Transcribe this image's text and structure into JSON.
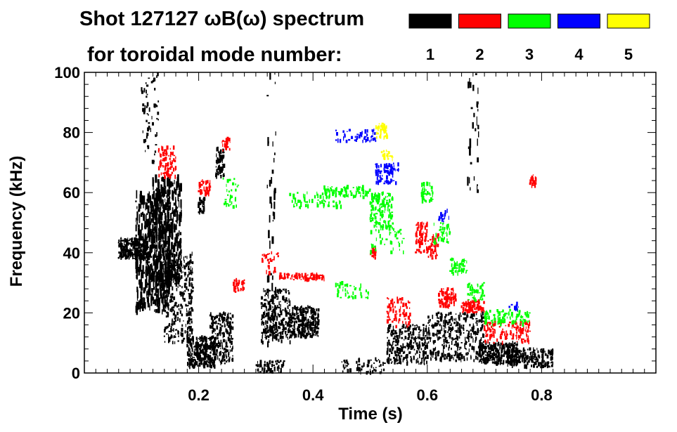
{
  "chart_data": {
    "type": "scatter",
    "title_line1": "Shot 127127 ωB(ω) spectrum",
    "title_line2": "for toroidal mode number:",
    "xlabel": "Time (s)",
    "ylabel": "Frequency (kHz)",
    "xlim": [
      0.0,
      1.0
    ],
    "ylim": [
      0,
      100
    ],
    "xticks": [
      0.2,
      0.4,
      0.6,
      0.8
    ],
    "xtick_labels": [
      "0.2",
      "0.4",
      "0.6",
      "0.8"
    ],
    "yticks": [
      0,
      20,
      40,
      60,
      80,
      100
    ],
    "ytick_labels": [
      "0",
      "20",
      "40",
      "60",
      "80",
      "100"
    ],
    "legend": [
      {
        "label": "1",
        "color": "#000000"
      },
      {
        "label": "2",
        "color": "#ff0000"
      },
      {
        "label": "3",
        "color": "#00ff00"
      },
      {
        "label": "4",
        "color": "#0000ff"
      },
      {
        "label": "5",
        "color": "#ffff00"
      }
    ],
    "series": [
      {
        "name": "n=1",
        "color": "#000000",
        "blobs": [
          [
            0.06,
            0.11,
            38,
            45,
            260
          ],
          [
            0.09,
            0.15,
            20,
            60,
            500
          ],
          [
            0.12,
            0.17,
            30,
            65,
            350
          ],
          [
            0.14,
            0.19,
            10,
            40,
            300
          ],
          [
            0.18,
            0.23,
            2,
            12,
            280
          ],
          [
            0.22,
            0.26,
            3,
            20,
            200
          ],
          [
            0.23,
            0.245,
            65,
            75,
            70
          ],
          [
            0.2,
            0.21,
            53,
            58,
            30
          ],
          [
            0.31,
            0.36,
            10,
            28,
            260
          ],
          [
            0.36,
            0.41,
            12,
            22,
            260
          ],
          [
            0.53,
            0.6,
            3,
            16,
            260
          ],
          [
            0.6,
            0.7,
            4,
            20,
            360
          ],
          [
            0.69,
            0.76,
            3,
            10,
            280
          ],
          [
            0.74,
            0.82,
            2,
            8,
            200
          ],
          [
            0.3,
            0.35,
            0,
            4,
            60
          ],
          [
            0.45,
            0.53,
            0,
            5,
            60
          ],
          [
            0.1,
            0.13,
            70,
            100,
            60
          ],
          [
            0.32,
            0.335,
            0,
            100,
            50
          ],
          [
            0.67,
            0.69,
            60,
            100,
            30
          ]
        ]
      },
      {
        "name": "n=2",
        "color": "#ff0000",
        "blobs": [
          [
            0.13,
            0.16,
            65,
            75,
            90
          ],
          [
            0.2,
            0.22,
            59,
            64,
            40
          ],
          [
            0.24,
            0.255,
            74,
            78,
            25
          ],
          [
            0.26,
            0.28,
            27,
            31,
            40
          ],
          [
            0.34,
            0.42,
            31,
            33,
            90
          ],
          [
            0.31,
            0.34,
            33,
            40,
            30
          ],
          [
            0.58,
            0.6,
            40,
            50,
            70
          ],
          [
            0.6,
            0.62,
            38,
            46,
            40
          ],
          [
            0.53,
            0.57,
            15,
            25,
            70
          ],
          [
            0.62,
            0.65,
            22,
            28,
            90
          ],
          [
            0.66,
            0.7,
            20,
            24,
            90
          ],
          [
            0.7,
            0.78,
            10,
            17,
            130
          ],
          [
            0.78,
            0.79,
            62,
            66,
            25
          ],
          [
            0.5,
            0.51,
            38,
            42,
            20
          ]
        ]
      },
      {
        "name": "n=3",
        "color": "#00ff00",
        "blobs": [
          [
            0.5,
            0.54,
            48,
            60,
            140
          ],
          [
            0.42,
            0.5,
            58,
            62,
            90
          ],
          [
            0.36,
            0.45,
            55,
            60,
            70
          ],
          [
            0.59,
            0.61,
            57,
            63,
            40
          ],
          [
            0.61,
            0.64,
            43,
            50,
            40
          ],
          [
            0.64,
            0.67,
            33,
            38,
            50
          ],
          [
            0.67,
            0.7,
            24,
            30,
            50
          ],
          [
            0.7,
            0.78,
            16,
            21,
            100
          ],
          [
            0.24,
            0.27,
            55,
            65,
            30
          ],
          [
            0.44,
            0.5,
            25,
            30,
            40
          ],
          [
            0.5,
            0.56,
            40,
            48,
            40
          ]
        ]
      },
      {
        "name": "n=4",
        "color": "#0000ff",
        "blobs": [
          [
            0.51,
            0.55,
            63,
            70,
            70
          ],
          [
            0.44,
            0.51,
            77,
            81,
            50
          ],
          [
            0.62,
            0.64,
            50,
            54,
            15
          ],
          [
            0.74,
            0.76,
            20,
            23,
            10
          ]
        ]
      },
      {
        "name": "n=5",
        "color": "#ffff00",
        "blobs": [
          [
            0.51,
            0.53,
            78,
            83,
            40
          ],
          [
            0.52,
            0.54,
            71,
            74,
            20
          ]
        ]
      }
    ]
  }
}
